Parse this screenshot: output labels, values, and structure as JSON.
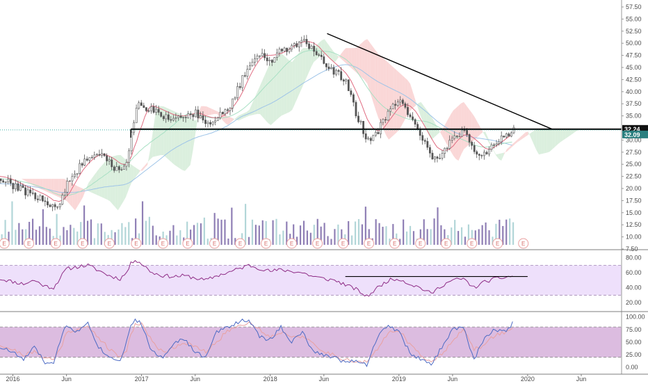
{
  "chart_data": [
    {
      "type": "candlestick",
      "name": "price",
      "y_axis_ticks": [
        "57.50",
        "55.00",
        "52.50",
        "50.00",
        "47.50",
        "45.00",
        "42.50",
        "40.00",
        "37.50",
        "35.00",
        "32.50",
        "30.00",
        "27.50",
        "25.00",
        "22.50",
        "20.00",
        "17.50",
        "15.00",
        "12.50",
        "10.00",
        "7.50"
      ],
      "ylim": [
        7.5,
        57.5
      ],
      "time_labels": [
        "2016",
        "Jun",
        "2017",
        "Jun",
        "2018",
        "Jun",
        "2019",
        "Jun",
        "2020",
        "Jun"
      ],
      "time_label_months": [
        0,
        5,
        12,
        17,
        24,
        29,
        36,
        41,
        48,
        53
      ],
      "x_range_months": [
        -1.2,
        56.5
      ],
      "last_month": 46.7,
      "price_path": [
        [
          -1.2,
          22
        ],
        [
          0,
          20.5
        ],
        [
          1,
          19.5
        ],
        [
          2,
          18.5
        ],
        [
          3,
          17.5
        ],
        [
          3.8,
          15.5
        ],
        [
          4.5,
          18
        ],
        [
          5,
          21
        ],
        [
          6,
          24
        ],
        [
          7,
          26.5
        ],
        [
          8,
          27
        ],
        [
          9,
          25
        ],
        [
          10,
          23.5
        ],
        [
          10.6,
          25
        ],
        [
          11,
          31
        ],
        [
          11.4,
          37
        ],
        [
          12,
          37
        ],
        [
          13,
          36
        ],
        [
          14,
          35
        ],
        [
          15,
          34
        ],
        [
          16,
          35
        ],
        [
          17,
          35.5
        ],
        [
          18,
          33
        ],
        [
          19,
          35
        ],
        [
          20,
          36
        ],
        [
          21,
          41
        ],
        [
          22,
          46
        ],
        [
          23,
          48
        ],
        [
          24,
          46
        ],
        [
          25,
          49
        ],
        [
          26,
          49
        ],
        [
          27,
          51
        ],
        [
          28,
          48
        ],
        [
          29,
          46
        ],
        [
          30,
          44
        ],
        [
          31,
          42
        ],
        [
          32,
          35
        ],
        [
          33,
          30
        ],
        [
          34,
          32
        ],
        [
          35,
          36
        ],
        [
          36,
          38
        ],
        [
          37,
          35
        ],
        [
          38,
          31
        ],
        [
          39,
          27
        ],
        [
          39.5,
          25.5
        ],
        [
          40,
          28
        ],
        [
          41,
          30
        ],
        [
          42,
          32
        ],
        [
          43,
          27
        ],
        [
          44,
          27.5
        ],
        [
          45,
          29.5
        ],
        [
          46,
          31
        ],
        [
          46.7,
          32.1
        ]
      ],
      "current_price": "32.09",
      "horizontal_line": {
        "label": "32.24",
        "value": 32.24
      },
      "trendline": [
        [
          29.3,
          52
        ],
        [
          50.3,
          32.24
        ]
      ],
      "earnings_marker": "E",
      "earnings_months": [
        -0.8,
        1.5,
        4,
        6.5,
        9,
        11.5,
        14,
        16.3,
        18.8,
        21.2,
        23.6,
        26,
        28.4,
        30.8,
        33.2,
        35.6,
        38,
        40.4,
        42.8,
        45.2,
        47.6
      ],
      "colors": {
        "up": "#26a69a",
        "down": "#ef5350",
        "candle": "#555555",
        "trendline": "#000000",
        "vol_up": "#b2d6d8",
        "vol_down": "#8f7fb5",
        "cloud_up": "#cfead3",
        "cloud_down": "#f8c9c9",
        "ma_red": "#e06b80",
        "ma_green": "#a8e0c4",
        "ma_blue": "#9ec4e8"
      }
    },
    {
      "type": "line",
      "name": "rsi",
      "y_axis_ticks": [
        "80.00",
        "60.00",
        "40.00",
        "20.00"
      ],
      "ylim": [
        10,
        88
      ],
      "band": [
        30,
        70
      ],
      "path": [
        [
          -1.2,
          52
        ],
        [
          0,
          48
        ],
        [
          1,
          45
        ],
        [
          2,
          50
        ],
        [
          3,
          42
        ],
        [
          3.8,
          40
        ],
        [
          4.5,
          55
        ],
        [
          5,
          65
        ],
        [
          6,
          68
        ],
        [
          7,
          70
        ],
        [
          8,
          63
        ],
        [
          9,
          56
        ],
        [
          10,
          52
        ],
        [
          10.6,
          60
        ],
        [
          11,
          72
        ],
        [
          11.4,
          78
        ],
        [
          12,
          72
        ],
        [
          13,
          60
        ],
        [
          14,
          56
        ],
        [
          15,
          55
        ],
        [
          16,
          56
        ],
        [
          17,
          53
        ],
        [
          18,
          50
        ],
        [
          19,
          56
        ],
        [
          20,
          60
        ],
        [
          21,
          65
        ],
        [
          22,
          70
        ],
        [
          23,
          66
        ],
        [
          24,
          62
        ],
        [
          25,
          64
        ],
        [
          26,
          62
        ],
        [
          27,
          60
        ],
        [
          28,
          55
        ],
        [
          29,
          52
        ],
        [
          30,
          50
        ],
        [
          31,
          44
        ],
        [
          32,
          38
        ],
        [
          33,
          28
        ],
        [
          34,
          40
        ],
        [
          35,
          50
        ],
        [
          36,
          52
        ],
        [
          37,
          45
        ],
        [
          38,
          40
        ],
        [
          39,
          32
        ],
        [
          40,
          43
        ],
        [
          41,
          50
        ],
        [
          42,
          52
        ],
        [
          43,
          40
        ],
        [
          44,
          48
        ],
        [
          45,
          52
        ],
        [
          46,
          54
        ],
        [
          46.7,
          56
        ]
      ],
      "resistance": {
        "value": 55,
        "start": 31,
        "end": 48
      },
      "colors": {
        "line": "#8e2c86",
        "band": "#eee0fb",
        "band_border": "#a28bb5",
        "resistance": "#000000"
      }
    },
    {
      "type": "line",
      "name": "stochastic",
      "y_axis_ticks": [
        "100.00",
        "75.00",
        "50.00",
        "25.00",
        "0.00"
      ],
      "ylim": [
        -8,
        105
      ],
      "band": [
        20,
        80
      ],
      "k_path": [
        [
          -1.2,
          40
        ],
        [
          0,
          30
        ],
        [
          1,
          15
        ],
        [
          2,
          40
        ],
        [
          3,
          10
        ],
        [
          3.8,
          5
        ],
        [
          4.5,
          60
        ],
        [
          5,
          85
        ],
        [
          6,
          70
        ],
        [
          7,
          90
        ],
        [
          8,
          40
        ],
        [
          9,
          20
        ],
        [
          10,
          15
        ],
        [
          10.6,
          50
        ],
        [
          11,
          85
        ],
        [
          11.4,
          95
        ],
        [
          12,
          85
        ],
        [
          13,
          30
        ],
        [
          14,
          20
        ],
        [
          15,
          50
        ],
        [
          16,
          55
        ],
        [
          17,
          30
        ],
        [
          18,
          20
        ],
        [
          19,
          70
        ],
        [
          20,
          80
        ],
        [
          21,
          90
        ],
        [
          22,
          95
        ],
        [
          23,
          60
        ],
        [
          24,
          55
        ],
        [
          25,
          80
        ],
        [
          26,
          50
        ],
        [
          27,
          70
        ],
        [
          28,
          30
        ],
        [
          29,
          25
        ],
        [
          30,
          20
        ],
        [
          31,
          10
        ],
        [
          32,
          15
        ],
        [
          33,
          5
        ],
        [
          34,
          60
        ],
        [
          35,
          85
        ],
        [
          36,
          70
        ],
        [
          37,
          30
        ],
        [
          38,
          15
        ],
        [
          39,
          5
        ],
        [
          40,
          40
        ],
        [
          41,
          75
        ],
        [
          42,
          80
        ],
        [
          43,
          15
        ],
        [
          44,
          60
        ],
        [
          45,
          75
        ],
        [
          46,
          70
        ],
        [
          46.7,
          90
        ]
      ],
      "d_path": [
        [
          -1.2,
          45
        ],
        [
          0,
          35
        ],
        [
          1,
          25
        ],
        [
          2,
          30
        ],
        [
          3,
          20
        ],
        [
          3.8,
          15
        ],
        [
          4.5,
          40
        ],
        [
          5,
          70
        ],
        [
          6,
          75
        ],
        [
          7,
          80
        ],
        [
          8,
          60
        ],
        [
          9,
          35
        ],
        [
          10,
          20
        ],
        [
          10.6,
          35
        ],
        [
          11,
          65
        ],
        [
          11.4,
          85
        ],
        [
          12,
          88
        ],
        [
          13,
          50
        ],
        [
          14,
          30
        ],
        [
          15,
          40
        ],
        [
          16,
          50
        ],
        [
          17,
          40
        ],
        [
          18,
          30
        ],
        [
          19,
          50
        ],
        [
          20,
          72
        ],
        [
          21,
          82
        ],
        [
          22,
          90
        ],
        [
          23,
          75
        ],
        [
          24,
          60
        ],
        [
          25,
          70
        ],
        [
          26,
          62
        ],
        [
          27,
          62
        ],
        [
          28,
          45
        ],
        [
          29,
          30
        ],
        [
          30,
          25
        ],
        [
          31,
          15
        ],
        [
          32,
          12
        ],
        [
          33,
          10
        ],
        [
          34,
          35
        ],
        [
          35,
          70
        ],
        [
          36,
          75
        ],
        [
          37,
          45
        ],
        [
          38,
          25
        ],
        [
          39,
          12
        ],
        [
          40,
          25
        ],
        [
          41,
          55
        ],
        [
          42,
          75
        ],
        [
          43,
          35
        ],
        [
          44,
          45
        ],
        [
          45,
          65
        ],
        [
          46,
          70
        ],
        [
          46.7,
          80
        ]
      ],
      "colors": {
        "k": "#4d6bc4",
        "d": "#e9a1a1",
        "band": "#dcbce0",
        "band_border": "#888888"
      }
    }
  ]
}
